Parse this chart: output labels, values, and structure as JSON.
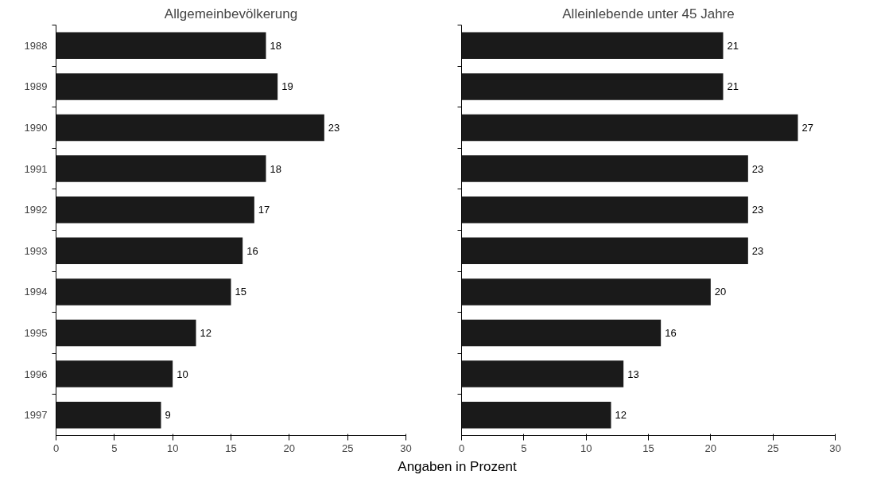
{
  "chart_data": [
    {
      "type": "bar",
      "orientation": "horizontal",
      "title": "Allgemeinbevölkerung",
      "xlabel": "Angaben in Prozent",
      "categories": [
        "1988",
        "1989",
        "1990",
        "1991",
        "1992",
        "1993",
        "1994",
        "1995",
        "1996",
        "1997"
      ],
      "values": [
        18,
        19,
        23,
        18,
        17,
        16,
        15,
        12,
        10,
        9
      ],
      "color": "#1a1a1a",
      "xlim": [
        0,
        30
      ],
      "xticks": [
        0,
        5,
        10,
        15,
        20,
        25,
        30
      ],
      "data_labels": true,
      "grid": false
    },
    {
      "type": "bar",
      "orientation": "horizontal",
      "title": "Alleinlebende unter 45 Jahre",
      "categories": [
        "1988",
        "1989",
        "1990",
        "1991",
        "1992",
        "1993",
        "1994",
        "1995",
        "1996",
        "1997"
      ],
      "values": [
        21,
        21,
        27,
        23,
        23,
        23,
        20,
        16,
        13,
        12
      ],
      "color": "#1a1a1a",
      "xlim": [
        0,
        30
      ],
      "xticks": [
        0,
        5,
        10,
        15,
        20,
        25,
        30
      ],
      "data_labels": true,
      "grid": false,
      "tick_labels": "x"
    }
  ]
}
